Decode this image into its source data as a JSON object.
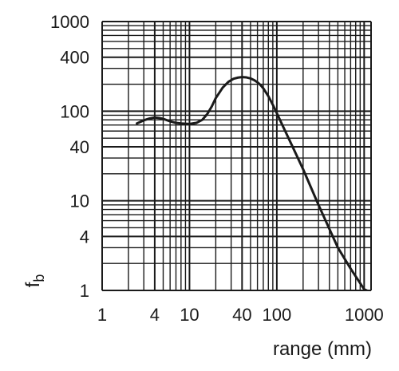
{
  "chart_data": {
    "type": "line",
    "title": "",
    "xlabel": "range (mm)",
    "ylabel": "f",
    "ylabel_sub": "b",
    "x_scale": "log",
    "y_scale": "log",
    "xlim": [
      1,
      1200
    ],
    "ylim": [
      1,
      1000
    ],
    "grid": true,
    "x_ticks": [
      1,
      4,
      10,
      40,
      100,
      1000
    ],
    "x_tick_labels": [
      "1",
      "4",
      "10",
      "40",
      "100",
      "1000"
    ],
    "y_ticks": [
      1,
      4,
      10,
      40,
      100,
      400,
      1000
    ],
    "y_tick_labels": [
      "1",
      "4",
      "10",
      "40",
      "100",
      "400",
      "1000"
    ],
    "x_gridlines": [
      1,
      2,
      3,
      4,
      5,
      6,
      7,
      8,
      9,
      10,
      20,
      30,
      40,
      50,
      60,
      70,
      80,
      90,
      100,
      200,
      300,
      400,
      500,
      600,
      700,
      800,
      900,
      1000,
      1200
    ],
    "y_gridlines": [
      1,
      2,
      3,
      4,
      5,
      6,
      7,
      8,
      9,
      10,
      20,
      30,
      40,
      50,
      60,
      70,
      80,
      90,
      100,
      200,
      300,
      400,
      500,
      600,
      700,
      800,
      900,
      1000
    ],
    "series": [
      {
        "x": [
          2.5,
          3,
          3.5,
          4,
          4.5,
          5,
          6,
          7,
          8,
          10,
          12,
          14,
          16,
          18,
          20,
          24,
          28,
          32,
          36,
          40,
          45,
          50,
          55,
          60,
          65,
          70,
          80,
          90,
          100,
          120,
          150,
          200,
          300,
          500,
          700,
          1000,
          1200
        ],
        "y": [
          73,
          79,
          83,
          85,
          84,
          82,
          77,
          74,
          73,
          72,
          74,
          80,
          93,
          113,
          140,
          183,
          213,
          230,
          237,
          240,
          238,
          232,
          222,
          210,
          196,
          180,
          147,
          118,
          95,
          65,
          41,
          22.5,
          9,
          3,
          1.75,
          1.03,
          0.95
        ],
        "color": "#1a1a1a"
      }
    ]
  }
}
